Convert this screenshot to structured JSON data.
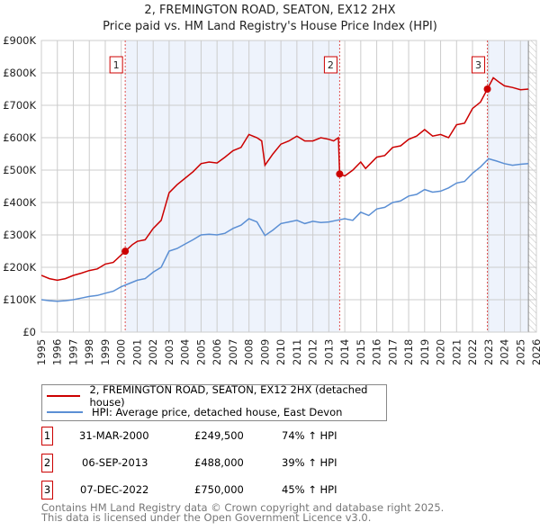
{
  "chart_data": {
    "type": "line",
    "title": "2, FREMINGTON ROAD, SEATON, EX12 2HX",
    "subtitle": "Price paid vs. HM Land Registry's House Price Index (HPI)",
    "xlim": [
      1995,
      2026
    ],
    "ylim": [
      0,
      900000
    ],
    "y_ticks": [
      {
        "v": 0,
        "label": "£0"
      },
      {
        "v": 100000,
        "label": "£100K"
      },
      {
        "v": 200000,
        "label": "£200K"
      },
      {
        "v": 300000,
        "label": "£300K"
      },
      {
        "v": 400000,
        "label": "£400K"
      },
      {
        "v": 500000,
        "label": "£500K"
      },
      {
        "v": 600000,
        "label": "£600K"
      },
      {
        "v": 700000,
        "label": "£700K"
      },
      {
        "v": 800000,
        "label": "£800K"
      },
      {
        "v": 900000,
        "label": "£900K"
      }
    ],
    "x_ticks": [
      "1995",
      "1996",
      "1997",
      "1998",
      "1999",
      "2000",
      "2001",
      "2002",
      "2003",
      "2004",
      "2005",
      "2006",
      "2007",
      "2008",
      "2009",
      "2010",
      "2011",
      "2012",
      "2013",
      "2014",
      "2015",
      "2016",
      "2017",
      "2018",
      "2019",
      "2020",
      "2021",
      "2022",
      "2023",
      "2024",
      "2025",
      "2026"
    ],
    "grid": true,
    "forecast_hatch_from": 2025.5,
    "series": [
      {
        "name": "2, FREMINGTON ROAD, SEATON, EX12 2HX (detached house)",
        "color": "#cc0000",
        "x": [
          1995,
          1995.5,
          1996,
          1996.5,
          1997,
          1997.5,
          1998,
          1998.5,
          1999,
          1999.5,
          2000.25,
          2000.7,
          2001,
          2001.5,
          2002,
          2002.5,
          2003,
          2003.5,
          2004,
          2004.5,
          2005,
          2005.5,
          2006,
          2006.5,
          2007,
          2007.5,
          2008,
          2008.5,
          2008.8,
          2009,
          2009.5,
          2010,
          2010.5,
          2011,
          2011.5,
          2012,
          2012.5,
          2013,
          2013.3,
          2013.6,
          2013.68,
          2014,
          2014.5,
          2015,
          2015.3,
          2015.6,
          2016,
          2016.5,
          2017,
          2017.5,
          2018,
          2018.5,
          2019,
          2019.5,
          2020,
          2020.5,
          2021,
          2021.5,
          2022,
          2022.5,
          2022.93,
          2023.3,
          2023.7,
          2024,
          2024.5,
          2025,
          2025.5
        ],
        "y": [
          175000,
          165000,
          160000,
          165000,
          175000,
          182000,
          190000,
          195000,
          210000,
          215000,
          249500,
          270000,
          280000,
          285000,
          320000,
          345000,
          430000,
          455000,
          475000,
          495000,
          520000,
          525000,
          522000,
          540000,
          560000,
          570000,
          610000,
          600000,
          590000,
          515000,
          550000,
          580000,
          590000,
          605000,
          590000,
          590000,
          600000,
          595000,
          590000,
          600000,
          488000,
          482000,
          500000,
          525000,
          505000,
          520000,
          540000,
          545000,
          570000,
          575000,
          595000,
          605000,
          625000,
          605000,
          610000,
          600000,
          640000,
          645000,
          690000,
          710000,
          750000,
          785000,
          770000,
          760000,
          755000,
          748000,
          750000
        ]
      },
      {
        "name": "HPI: Average price, detached house, East Devon",
        "color": "#5b8fd4",
        "x": [
          1995,
          1995.5,
          1996,
          1996.5,
          1997,
          1997.5,
          1998,
          1998.5,
          1999,
          1999.5,
          2000,
          2000.5,
          2001,
          2001.5,
          2002,
          2002.5,
          2003,
          2003.5,
          2004,
          2004.5,
          2005,
          2005.5,
          2006,
          2006.5,
          2007,
          2007.5,
          2008,
          2008.5,
          2009,
          2009.5,
          2010,
          2010.5,
          2011,
          2011.5,
          2012,
          2012.5,
          2013,
          2013.5,
          2014,
          2014.5,
          2015,
          2015.5,
          2016,
          2016.5,
          2017,
          2017.5,
          2018,
          2018.5,
          2019,
          2019.5,
          2020,
          2020.5,
          2021,
          2021.5,
          2022,
          2022.5,
          2023,
          2023.5,
          2024,
          2024.5,
          2025,
          2025.5
        ],
        "y": [
          100000,
          97000,
          95000,
          97000,
          100000,
          105000,
          110000,
          113000,
          120000,
          126000,
          140000,
          150000,
          160000,
          165000,
          185000,
          200000,
          250000,
          258000,
          272000,
          285000,
          300000,
          302000,
          300000,
          305000,
          320000,
          330000,
          350000,
          340000,
          298000,
          315000,
          335000,
          340000,
          345000,
          335000,
          342000,
          338000,
          340000,
          345000,
          350000,
          345000,
          370000,
          360000,
          380000,
          385000,
          400000,
          405000,
          420000,
          425000,
          440000,
          432000,
          435000,
          445000,
          460000,
          465000,
          490000,
          510000,
          535000,
          528000,
          520000,
          515000,
          518000,
          520000
        ]
      }
    ],
    "sales": [
      {
        "label": "1",
        "date": "31-MAR-2000",
        "x": 2000.25,
        "price": "£249,500",
        "value": 249500,
        "hpi": "74% ↑ HPI"
      },
      {
        "label": "2",
        "date": "06-SEP-2013",
        "x": 2013.68,
        "price": "£488,000",
        "value": 488000,
        "hpi": "39% ↑ HPI"
      },
      {
        "label": "3",
        "date": "07-DEC-2022",
        "x": 2022.93,
        "price": "£750,000",
        "value": 750000,
        "hpi": "45% ↑ HPI"
      }
    ],
    "legend": [
      "2, FREMINGTON ROAD, SEATON, EX12 2HX (detached house)",
      "HPI: Average price, detached house, East Devon"
    ]
  },
  "footer": [
    "Contains HM Land Registry data © Crown copyright and database right 2025.",
    "This data is licensed under the Open Government Licence v3.0."
  ],
  "colors": {
    "shade": "#eef3fc",
    "grid": "#cccccc"
  }
}
